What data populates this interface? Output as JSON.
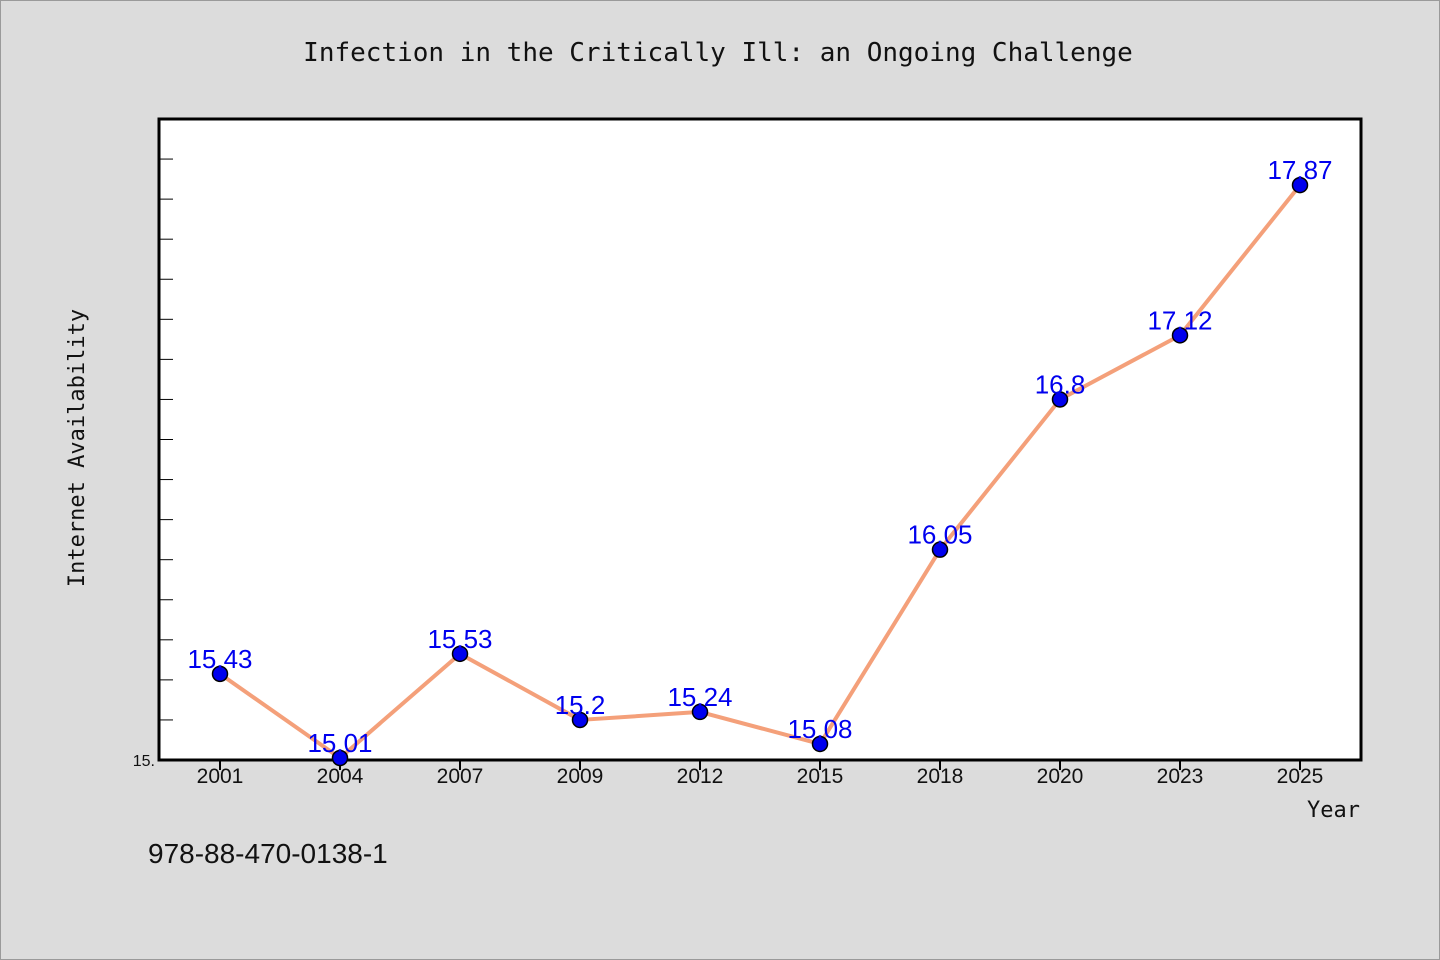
{
  "footnote": "978-88-470-0138-1",
  "chart_data": {
    "type": "line",
    "title": "Infection in the Critically Ill: an Ongoing Challenge",
    "xlabel": "Year",
    "ylabel": "Internet Availability",
    "categories": [
      "2001",
      "2004",
      "2007",
      "2009",
      "2012",
      "2015",
      "2018",
      "2020",
      "2023",
      "2025"
    ],
    "values": [
      15.43,
      15.01,
      15.53,
      15.2,
      15.24,
      15.08,
      16.05,
      16.8,
      17.12,
      17.87
    ],
    "data_labels": [
      "15.43",
      "15.01",
      "15.53",
      "15.2",
      "15.24",
      "15.08",
      "16.05",
      "16.8",
      "17.12",
      "17.87"
    ],
    "y_tick_labels": [
      {
        "value": 15.0,
        "label": "15."
      }
    ],
    "ylim": [
      15.0,
      18.2
    ],
    "grid": false,
    "legend": "none",
    "colors": {
      "line": "#f4a07a",
      "marker": "#0000ee",
      "label": "#0000ee",
      "background": "#dcdcdc",
      "plot_background": "#ffffff"
    }
  }
}
